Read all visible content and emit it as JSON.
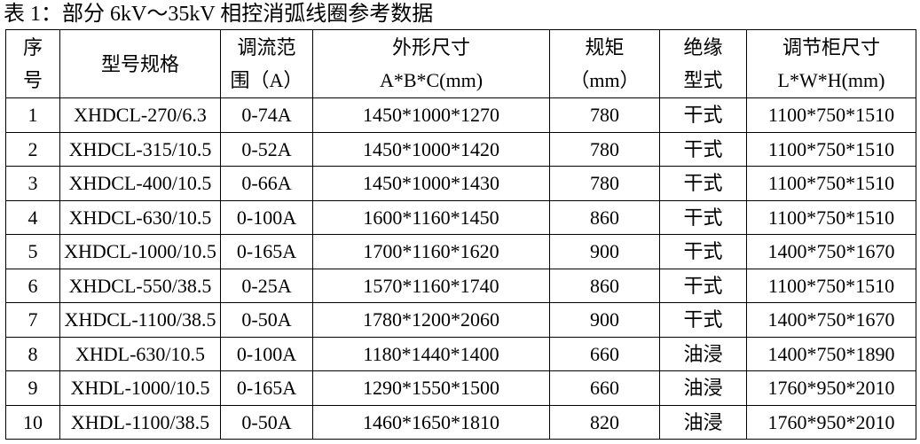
{
  "title": "表 1：部分 6kV～35kV 相控消弧线圈参考数据",
  "headers": [
    [
      "序",
      "号"
    ],
    [
      "型号规格"
    ],
    [
      "调流范",
      "围（A）"
    ],
    [
      "外形尺寸",
      "A*B*C(mm)"
    ],
    [
      "规矩",
      "（mm）"
    ],
    [
      "绝缘",
      "型式"
    ],
    [
      "调节柜尺寸",
      "L*W*H(mm)"
    ]
  ],
  "rows": [
    [
      "1",
      "XHDCL-270/6.3",
      "0-74A",
      "1450*1000*1270",
      "780",
      "干式",
      "1100*750*1510"
    ],
    [
      "2",
      "XHDCL-315/10.5",
      "0-52A",
      "1450*1000*1420",
      "780",
      "干式",
      "1100*750*1510"
    ],
    [
      "3",
      "XHDCL-400/10.5",
      "0-66A",
      "1450*1000*1430",
      "780",
      "干式",
      "1100*750*1510"
    ],
    [
      "4",
      "XHDCL-630/10.5",
      "0-100A",
      "1600*1160*1450",
      "860",
      "干式",
      "1100*750*1510"
    ],
    [
      "5",
      "XHDCL-1000/10.5",
      "0-165A",
      "1700*1160*1620",
      "900",
      "干式",
      "1400*750*1670"
    ],
    [
      "6",
      "XHDCL-550/38.5",
      "0-25A",
      "1570*1160*1740",
      "860",
      "干式",
      "1100*750*1510"
    ],
    [
      "7",
      "XHDCL-1100/38.5",
      "0-50A",
      "1780*1200*2060",
      "900",
      "干式",
      "1400*750*1670"
    ],
    [
      "8",
      "XHDL-630/10.5",
      "0-100A",
      "1180*1440*1400",
      "660",
      "油浸",
      "1400*750*1890"
    ],
    [
      "9",
      "XHDL-1000/10.5",
      "0-165A",
      "1290*1550*1500",
      "660",
      "油浸",
      "1760*950*2010"
    ],
    [
      "10",
      "XHDL-1100/38.5",
      "0-50A",
      "1460*1650*1810",
      "820",
      "油浸",
      "1760*950*2010"
    ]
  ]
}
